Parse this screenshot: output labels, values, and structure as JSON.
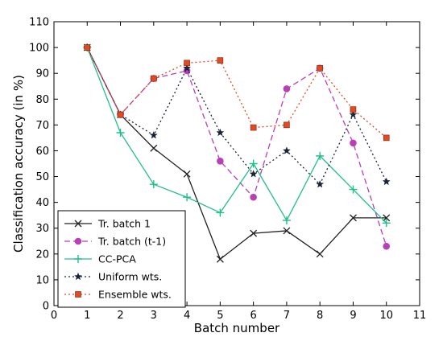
{
  "chart_data": {
    "type": "line",
    "title": "",
    "xlabel": "Batch number",
    "ylabel": "Classification accuracy (in %)",
    "xlim": [
      0,
      11
    ],
    "ylim": [
      0,
      110
    ],
    "xticks": [
      "0",
      "1",
      "2",
      "3",
      "4",
      "5",
      "6",
      "7",
      "8",
      "9",
      "10",
      "11"
    ],
    "yticks": [
      "0",
      "10",
      "20",
      "30",
      "40",
      "50",
      "60",
      "70",
      "80",
      "90",
      "100",
      "110"
    ],
    "grid": false,
    "legend_position": "lower-left",
    "x": [
      1,
      2,
      3,
      4,
      5,
      6,
      7,
      8,
      9,
      10
    ],
    "series": [
      {
        "name": "Tr. batch 1",
        "color": "#222222",
        "line": "solid",
        "marker": "x",
        "values": [
          100,
          74,
          61,
          51,
          18,
          28,
          29,
          20,
          34,
          34
        ]
      },
      {
        "name": "Tr. batch (t-1)",
        "color": "#b83fb8",
        "line": "dashed",
        "marker": "circle",
        "values": [
          100,
          74,
          88,
          91,
          56,
          42,
          84,
          92,
          63,
          23
        ]
      },
      {
        "name": "CC-PCA",
        "color": "#1fc08a",
        "line": "solid",
        "marker": "plus",
        "values": [
          100,
          67,
          47,
          42,
          36,
          55,
          33,
          58,
          45,
          32
        ]
      },
      {
        "name": "Uniform wts.",
        "color": "#1a2238",
        "line": "dotted",
        "marker": "star",
        "values": [
          100,
          74,
          66,
          92,
          67,
          51,
          60,
          47,
          74,
          48
        ]
      },
      {
        "name": "Ensemble wts.",
        "color": "#e24a22",
        "line": "dotted",
        "marker": "square",
        "values": [
          100,
          74,
          88,
          94,
          95,
          69,
          70,
          92,
          76,
          65
        ]
      }
    ]
  }
}
